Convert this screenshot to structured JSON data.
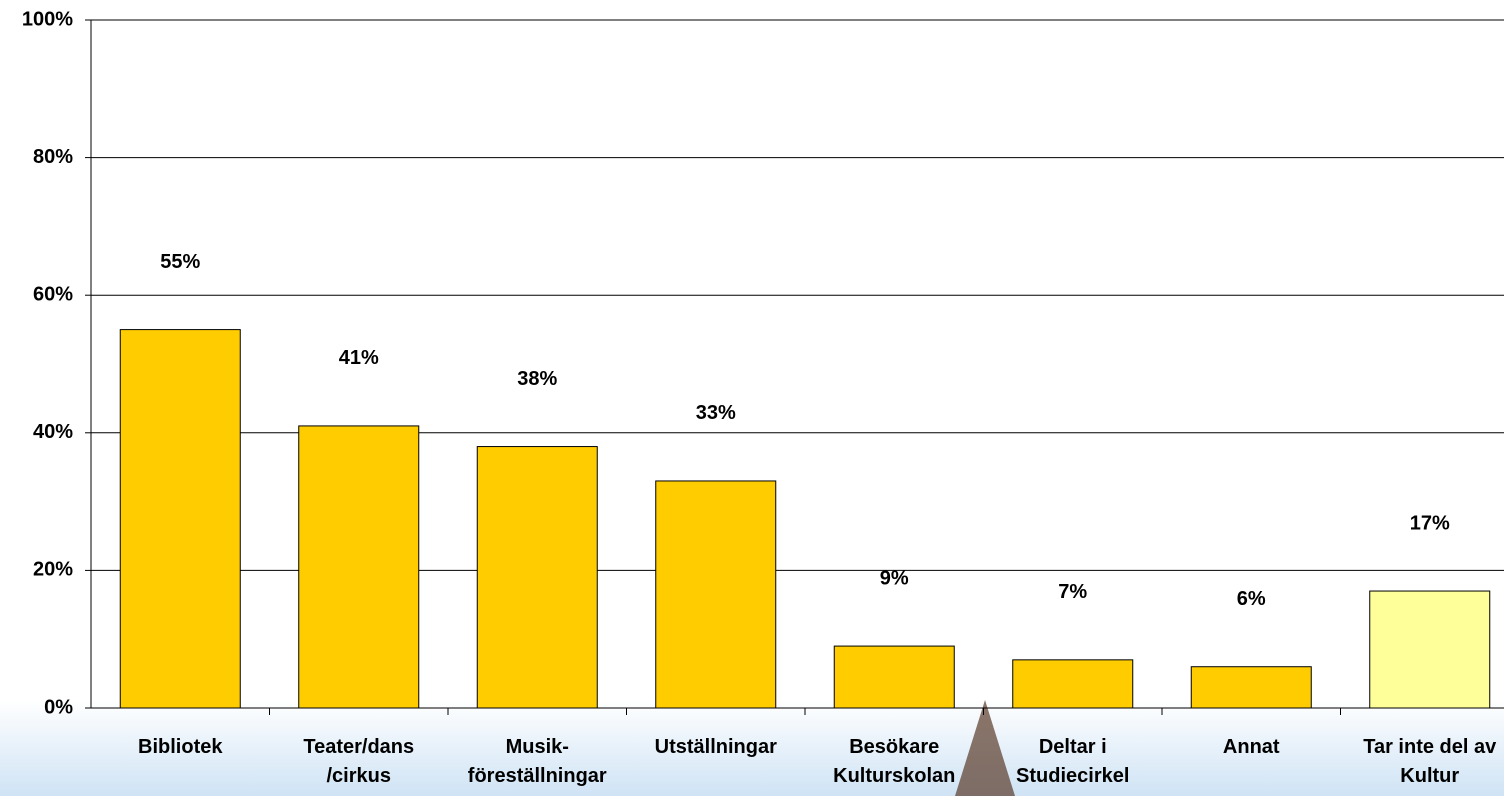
{
  "chart_data": {
    "type": "bar",
    "categories": [
      [
        "Bibliotek"
      ],
      [
        "Teater/dans",
        "/cirkus"
      ],
      [
        "Musik-",
        "föreställningar"
      ],
      [
        "Utställningar"
      ],
      [
        "Besökare",
        "Kulturskolan"
      ],
      [
        "Deltar i",
        "Studiecirkel"
      ],
      [
        "Annat"
      ],
      [
        "Tar inte del av",
        "Kultur"
      ]
    ],
    "values": [
      55,
      41,
      38,
      33,
      9,
      7,
      6,
      17
    ],
    "value_labels": [
      "55%",
      "41%",
      "38%",
      "33%",
      "9%",
      "7%",
      "6%",
      "17%"
    ],
    "colors": [
      "#ffcc00",
      "#ffcc00",
      "#ffcc00",
      "#ffcc00",
      "#ffcc00",
      "#ffcc00",
      "#ffcc00",
      "#ffff99"
    ],
    "ylim": [
      0,
      100
    ],
    "yticks": [
      {
        "value": 0,
        "label": "0%"
      },
      {
        "value": 20,
        "label": "20%"
      },
      {
        "value": 40,
        "label": "40%"
      },
      {
        "value": 60,
        "label": "60%"
      },
      {
        "value": 80,
        "label": "80%"
      },
      {
        "value": 100,
        "label": "100%"
      }
    ],
    "grid": true
  }
}
